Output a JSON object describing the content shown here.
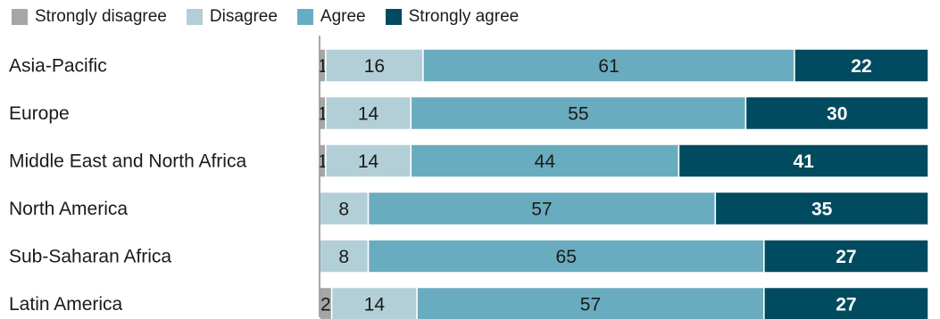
{
  "chart_data": {
    "type": "bar",
    "orientation": "horizontal",
    "stacked": true,
    "title": "",
    "xlabel": "",
    "ylabel": "",
    "xlim": [
      0,
      100
    ],
    "grid": false,
    "legend_position": "top-left",
    "categories": [
      "Asia-Pacific",
      "Europe",
      "Middle East and North Africa",
      "North America",
      "Sub-Saharan Africa",
      "Latin America"
    ],
    "series": [
      {
        "name": "Strongly disagree",
        "color": "#a6a6a6",
        "values": [
          1,
          1,
          1,
          0,
          0,
          2
        ]
      },
      {
        "name": "Disagree",
        "color": "#b2cfd8",
        "values": [
          16,
          14,
          14,
          8,
          8,
          14
        ]
      },
      {
        "name": "Agree",
        "color": "#6aacbf",
        "values": [
          61,
          55,
          44,
          57,
          65,
          57
        ]
      },
      {
        "name": "Strongly agree",
        "color": "#004b5f",
        "values": [
          22,
          30,
          41,
          35,
          27,
          27
        ]
      }
    ]
  }
}
